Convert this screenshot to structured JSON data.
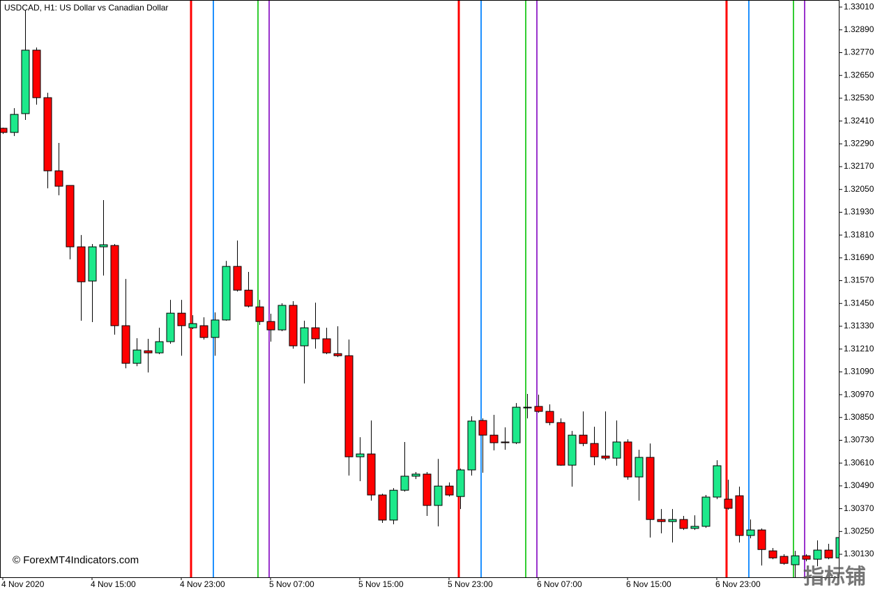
{
  "chart_data": {
    "type": "candlestick",
    "title": "USDCAD, H1:  US Dollar vs Canadian Dollar",
    "watermark": "© ForexMT4Indicators.com",
    "corner_watermark": "指标铺",
    "up_color": "#1de98b",
    "down_color": "#ff0000",
    "categories": [
      "4 Nov 2020",
      null,
      null,
      null,
      null,
      null,
      null,
      null,
      "4 Nov 15:00",
      null,
      null,
      null,
      null,
      null,
      null,
      null,
      "4 Nov 23:00",
      null,
      null,
      null,
      null,
      null,
      null,
      null,
      "5 Nov 07:00",
      null,
      null,
      null,
      null,
      null,
      null,
      null,
      "5 Nov 15:00",
      null,
      null,
      null,
      null,
      null,
      null,
      null,
      "5 Nov 23:00",
      null,
      null,
      null,
      null,
      null,
      null,
      null,
      "6 Nov 07:00",
      null,
      null,
      null,
      null,
      null,
      null,
      null,
      "6 Nov 15:00",
      null,
      null,
      null,
      null,
      null,
      null,
      null,
      "6 Nov 23:00",
      null,
      null,
      null,
      null,
      null,
      null,
      null,
      null,
      null,
      null,
      null
    ],
    "open": [
      1.32372,
      1.3235,
      1.32449,
      1.32783,
      1.32533,
      1.32148,
      1.32071,
      1.31748,
      1.31568,
      1.31748,
      1.31755,
      1.31333,
      1.31135,
      1.31201,
      1.3119,
      1.31249,
      1.31399,
      1.31322,
      1.31333,
      1.31271,
      1.31363,
      1.31645,
      1.3152,
      1.31432,
      1.31355,
      1.31311,
      1.3144,
      1.31227,
      1.31322,
      1.31264,
      1.31186,
      1.31175,
      1.30643,
      1.30658,
      1.30442,
      1.3031,
      1.30467,
      1.30541,
      1.30552,
      1.30387,
      1.30489,
      1.30434,
      1.30574,
      1.30834,
      1.30757,
      1.30721,
      1.30717,
      1.30904,
      1.30908,
      1.30882,
      1.30823,
      1.30599,
      1.30757,
      1.30713,
      1.30647,
      1.30636,
      1.30721,
      1.30537,
      1.3064,
      1.30313,
      1.30302,
      1.30313,
      1.30266,
      1.30277,
      1.30431,
      1.3042,
      1.30438,
      1.30229,
      1.30258,
      1.30148,
      1.30119,
      1.30075,
      1.30122,
      1.30104,
      1.30152,
      1.30111
    ],
    "high": [
      1.32375,
      1.32478,
      1.32992,
      1.32797,
      1.32559,
      1.32295,
      1.32071,
      1.3181,
      1.31763,
      1.31994,
      1.31763,
      1.31579,
      1.31267,
      1.31264,
      1.31322,
      1.31469,
      1.31469,
      1.31388,
      1.31377,
      1.31403,
      1.31674,
      1.31781,
      1.31616,
      1.31469,
      1.31396,
      1.31451,
      1.31462,
      1.31359,
      1.31454,
      1.31322,
      1.3133,
      1.3126,
      1.30746,
      1.30834,
      1.30449,
      1.30478,
      1.30721,
      1.30563,
      1.30563,
      1.30632,
      1.30508,
      1.30581,
      1.30856,
      1.30845,
      1.30864,
      1.30798,
      1.30926,
      1.30974,
      1.3097,
      1.30919,
      1.30845,
      1.30779,
      1.30882,
      1.30801,
      1.30882,
      1.30834,
      1.30735,
      1.3068,
      1.30713,
      1.30368,
      1.30368,
      1.30332,
      1.30335,
      1.30442,
      1.30625,
      1.30522,
      1.30486,
      1.30313,
      1.30266,
      1.30163,
      1.3013,
      1.30148,
      1.3013,
      1.30203,
      1.30185,
      1.30258
    ],
    "low": [
      1.32342,
      1.32331,
      1.32416,
      1.32496,
      1.32056,
      1.32019,
      1.31682,
      1.31359,
      1.31352,
      1.31597,
      1.31286,
      1.31109,
      1.3112,
      1.31087,
      1.31183,
      1.31238,
      1.31175,
      1.31315,
      1.3126,
      1.31175,
      1.31359,
      1.31513,
      1.31429,
      1.31337,
      1.31249,
      1.31304,
      1.31212,
      1.31029,
      1.31212,
      1.31183,
      1.31168,
      1.30544,
      1.30515,
      1.30412,
      1.30295,
      1.30288,
      1.3046,
      1.30526,
      1.30332,
      1.30277,
      1.30434,
      1.30368,
      1.30544,
      1.30559,
      1.30677,
      1.3068,
      1.3071,
      1.30845,
      1.30875,
      1.30809,
      1.30596,
      1.30486,
      1.30699,
      1.30599,
      1.30625,
      1.30596,
      1.30522,
      1.30412,
      1.30218,
      1.3024,
      1.30192,
      1.30258,
      1.30258,
      1.30269,
      1.3042,
      1.30365,
      1.30192,
      1.30214,
      1.30071,
      1.30104,
      1.30075,
      1.30009,
      1.30093,
      1.30067,
      1.30104,
      1.30104
    ],
    "close": [
      1.3235,
      1.32445,
      1.32783,
      1.32533,
      1.32148,
      1.32067,
      1.31748,
      1.31564,
      1.31748,
      1.31759,
      1.31333,
      1.31135,
      1.31205,
      1.3119,
      1.31249,
      1.31399,
      1.31333,
      1.31344,
      1.31271,
      1.31363,
      1.31645,
      1.3152,
      1.31436,
      1.31355,
      1.31311,
      1.3144,
      1.31227,
      1.31322,
      1.31264,
      1.3119,
      1.31175,
      1.30643,
      1.30658,
      1.30442,
      1.3031,
      1.30467,
      1.30541,
      1.30552,
      1.30387,
      1.30489,
      1.30442,
      1.30574,
      1.30831,
      1.30757,
      1.30717,
      1.30717,
      1.30904,
      1.30904,
      1.30882,
      1.30823,
      1.30599,
      1.30757,
      1.30713,
      1.30643,
      1.30636,
      1.30721,
      1.30537,
      1.3064,
      1.30313,
      1.30302,
      1.30313,
      1.30266,
      1.30277,
      1.30431,
      1.30596,
      1.30372,
      1.30229,
      1.30258,
      1.30155,
      1.30111,
      1.30082,
      1.30122,
      1.30104,
      1.30152,
      1.30111,
      1.30218
    ],
    "ylim": [
      1.30009,
      1.33047
    ],
    "yticks": [
      {
        "value": 1.3301,
        "label": "1.33010"
      },
      {
        "value": 1.3289,
        "label": "1.32890"
      },
      {
        "value": 1.3277,
        "label": "1.32770"
      },
      {
        "value": 1.3265,
        "label": "1.32650"
      },
      {
        "value": 1.3253,
        "label": "1.32530"
      },
      {
        "value": 1.3241,
        "label": "1.32410"
      },
      {
        "value": 1.3229,
        "label": "1.32290"
      },
      {
        "value": 1.3217,
        "label": "1.32170"
      },
      {
        "value": 1.3205,
        "label": "1.32050"
      },
      {
        "value": 1.3193,
        "label": "1.31930"
      },
      {
        "value": 1.3181,
        "label": "1.31810"
      },
      {
        "value": 1.3169,
        "label": "1.31690"
      },
      {
        "value": 1.3157,
        "label": "1.31570"
      },
      {
        "value": 1.3145,
        "label": "1.31450"
      },
      {
        "value": 1.3133,
        "label": "1.31330"
      },
      {
        "value": 1.3121,
        "label": "1.31210"
      },
      {
        "value": 1.3109,
        "label": "1.31090"
      },
      {
        "value": 1.3097,
        "label": "1.30970"
      },
      {
        "value": 1.3085,
        "label": "1.30850"
      },
      {
        "value": 1.3073,
        "label": "1.30730"
      },
      {
        "value": 1.3061,
        "label": "1.30610"
      },
      {
        "value": 1.3049,
        "label": "1.30490"
      },
      {
        "value": 1.3037,
        "label": "1.30370"
      },
      {
        "value": 1.3025,
        "label": "1.30250"
      },
      {
        "value": 1.3013,
        "label": "1.30130"
      }
    ],
    "vertical_lines": [
      {
        "at": 17,
        "color": "#ff0000"
      },
      {
        "at": 19,
        "color": "#1e90ff"
      },
      {
        "at": 23,
        "color": "#32cd32"
      },
      {
        "at": 24,
        "color": "#9932cc"
      },
      {
        "at": 41,
        "color": "#ff0000"
      },
      {
        "at": 43,
        "color": "#1e90ff"
      },
      {
        "at": 47,
        "color": "#32cd32"
      },
      {
        "at": 48,
        "color": "#9932cc"
      },
      {
        "at": 65,
        "color": "#ff0000"
      },
      {
        "at": 67,
        "color": "#1e90ff"
      },
      {
        "at": 71,
        "color": "#32cd32"
      },
      {
        "at": 72,
        "color": "#9932cc"
      }
    ]
  }
}
